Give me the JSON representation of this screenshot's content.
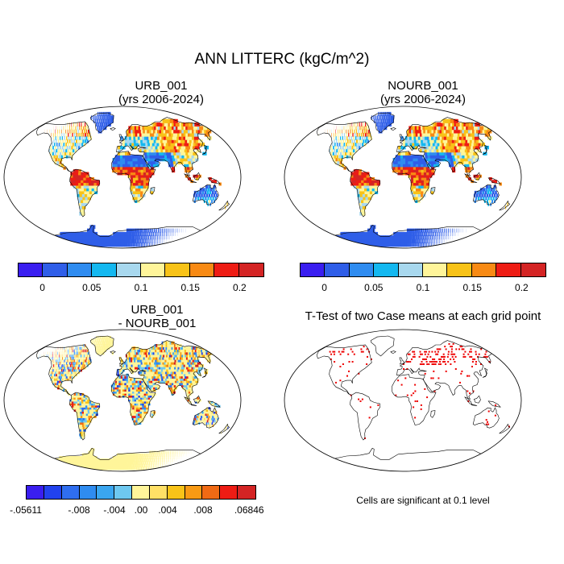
{
  "title": "ANN LITTERC (kgC/m^2)",
  "panels": [
    {
      "id": "urb",
      "title_line1": "URB_001",
      "title_line2": "(yrs 2006-2024)",
      "field": "absolute"
    },
    {
      "id": "nourb",
      "title_line1": "NOURB_001",
      "title_line2": "(yrs 2006-2024)",
      "field": "absolute"
    },
    {
      "id": "diff",
      "title_line1": "URB_001",
      "title_line2": "- NOURB_001",
      "field": "difference"
    },
    {
      "id": "ttest",
      "title_line1": "T-Test of two Case means at each grid point",
      "title_line2": "",
      "field": "significance"
    }
  ],
  "colorbar_absolute": {
    "colors": [
      "#3a1ef0",
      "#2f5ee8",
      "#2f8cf0",
      "#14b8f0",
      "#a8d8ee",
      "#fff59a",
      "#f8c318",
      "#f88a14",
      "#ee1c14",
      "#d42424"
    ],
    "labels": [
      "0",
      "0.05",
      "0.1",
      "0.15",
      "0.2"
    ]
  },
  "colorbar_difference": {
    "colors": [
      "#3a1ef0",
      "#2242ee",
      "#2f6ef0",
      "#2f8cf0",
      "#3aa6f0",
      "#6ec8f0",
      "#fff59a",
      "#ffe066",
      "#f8c318",
      "#f89a14",
      "#f06a14",
      "#ee1c14",
      "#d42424"
    ],
    "labels": [
      "-.05611",
      "-.008",
      "-.004",
      ".00",
      ".004",
      ".008",
      ".06846"
    ]
  },
  "significance_note": "Cells are significant at 0.1 level",
  "significance_color": "#ee0000"
}
